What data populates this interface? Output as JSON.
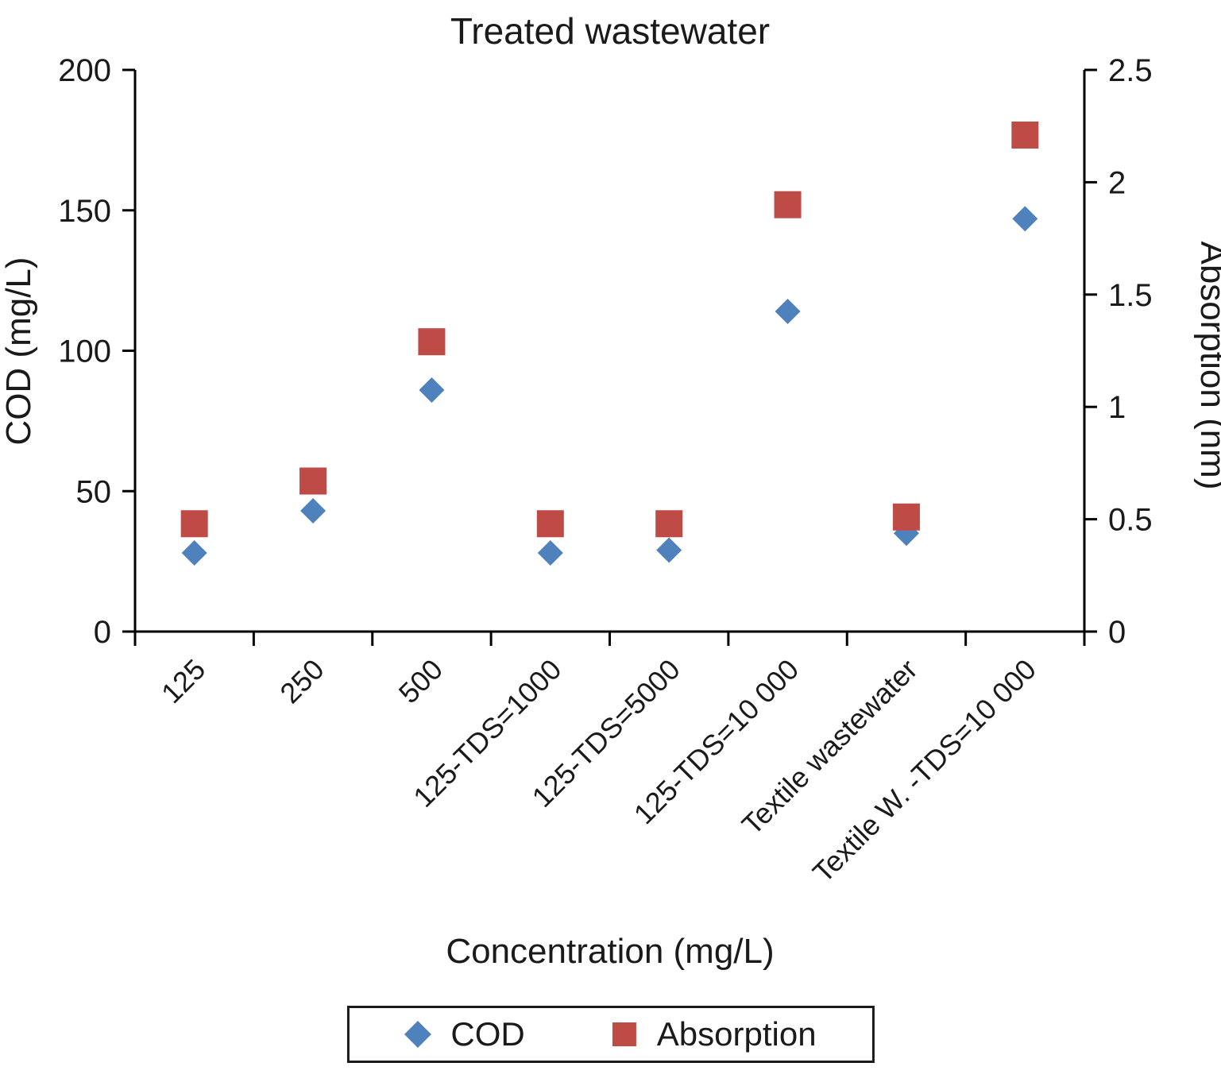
{
  "chart_data": {
    "type": "scatter",
    "title": "Treated wastewater",
    "xlabel": "Concentration (mg/L)",
    "ylabel_left": "COD (mg/L)",
    "ylabel_right": "Absorption (nm)",
    "grid": false,
    "legend_position": "bottom",
    "categories": [
      "125",
      "250",
      "500",
      "125-TDS=1000",
      "125-TDS=5000",
      "125-TDS=10 000",
      "Textile wastewater",
      "Textile W. -TDS=10 000"
    ],
    "axes": {
      "left": {
        "min": 0,
        "max": 200,
        "ticks": [
          0,
          50,
          100,
          150,
          200
        ]
      },
      "right": {
        "min": 0,
        "max": 2.5,
        "ticks": [
          0,
          0.5,
          1,
          1.5,
          2,
          2.5
        ]
      }
    },
    "series": [
      {
        "name": "COD",
        "axis": "left",
        "marker": "diamond",
        "color": "#4f81bd",
        "values": [
          28,
          43,
          86,
          28,
          29,
          114,
          35,
          147
        ]
      },
      {
        "name": "Absorption",
        "axis": "right",
        "marker": "square",
        "color": "#bf4b47",
        "values": [
          0.48,
          0.67,
          1.29,
          0.48,
          0.48,
          1.9,
          0.51,
          2.21
        ]
      }
    ]
  }
}
